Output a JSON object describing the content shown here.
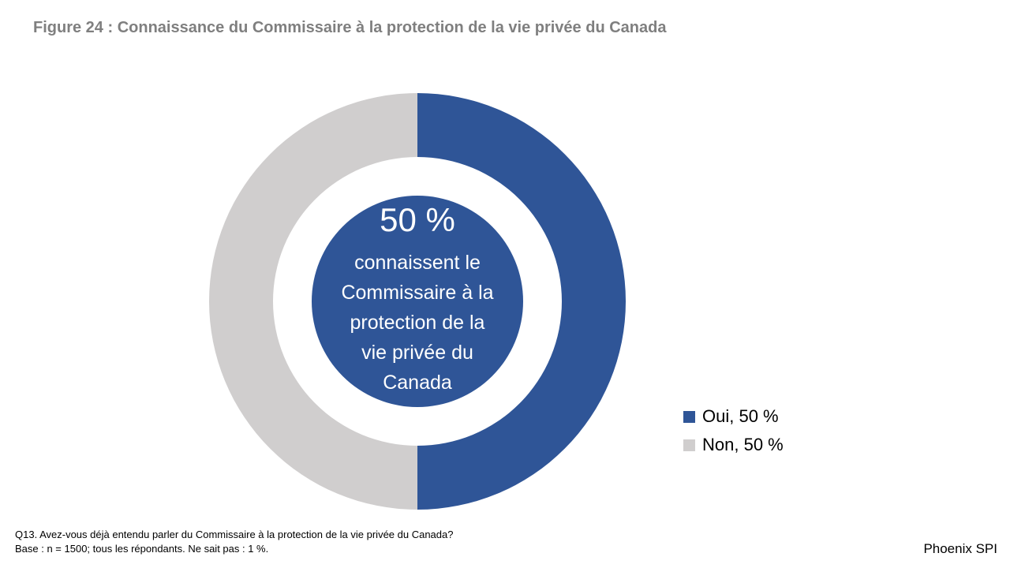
{
  "title": "Figure 24 : Connaissance du Commissaire à la protection de la vie privée du Canada",
  "chart_data": {
    "type": "pie",
    "variant": "donut",
    "slices": [
      {
        "label": "Oui, 50 %",
        "value": 50,
        "color": "#2f5597"
      },
      {
        "label": "Non, 50 %",
        "value": 50,
        "color": "#d0cece"
      }
    ],
    "center": {
      "value_text": "50 %",
      "description_lines": [
        "connaissent le",
        "Commissaire à la",
        "protection de la",
        "vie privée du",
        "Canada"
      ]
    },
    "legend_placement": "right"
  },
  "footnote": {
    "question": "Q13. Avez-vous déjà entendu parler du Commissaire à la protection de la vie privée du Canada?",
    "base": "Base : n = 1500; tous les répondants. Ne sait pas : 1 %."
  },
  "brand": "Phoenix SPI"
}
